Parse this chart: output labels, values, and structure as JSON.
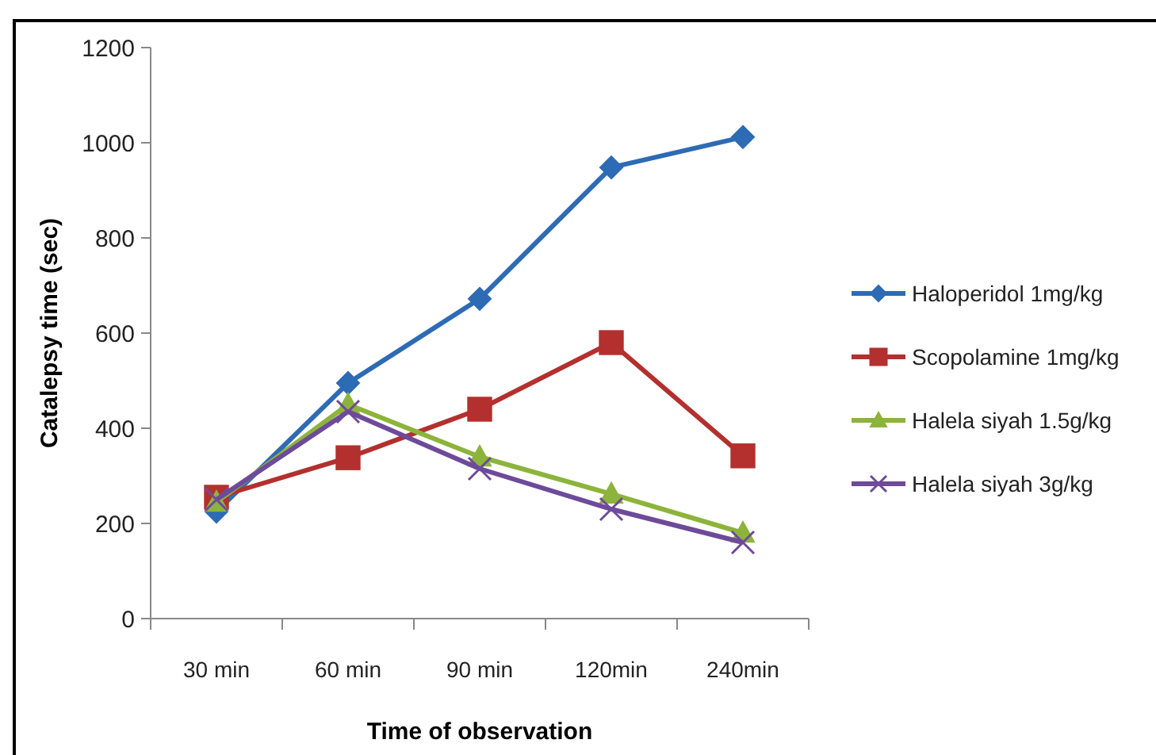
{
  "chart_data": {
    "type": "line",
    "xlabel": "Time of observation",
    "ylabel": "Catalepsy time (sec)",
    "categories": [
      "30 min",
      "60 min",
      "90 min",
      "120min",
      "240min"
    ],
    "ylim": [
      0,
      1200
    ],
    "yticks": [
      0,
      200,
      400,
      600,
      800,
      1000,
      1200
    ],
    "grid": false,
    "legend": "right",
    "series": [
      {
        "name": "Haloperidol 1mg/kg",
        "color": "#2e6bb5",
        "marker": "diamond",
        "values": [
          225,
          495,
          672,
          948,
          1012
        ]
      },
      {
        "name": "Scopolamine 1mg/kg",
        "color": "#b3302e",
        "marker": "square",
        "values": [
          255,
          338,
          440,
          580,
          342
        ]
      },
      {
        "name": "Halela siyah 1.5g/kg",
        "color": "#8cb43c",
        "marker": "triangle",
        "values": [
          245,
          450,
          340,
          262,
          180
        ]
      },
      {
        "name": "Halela siyah 3g/kg",
        "color": "#6e4a9a",
        "marker": "cross",
        "values": [
          250,
          435,
          315,
          230,
          160
        ]
      }
    ]
  }
}
